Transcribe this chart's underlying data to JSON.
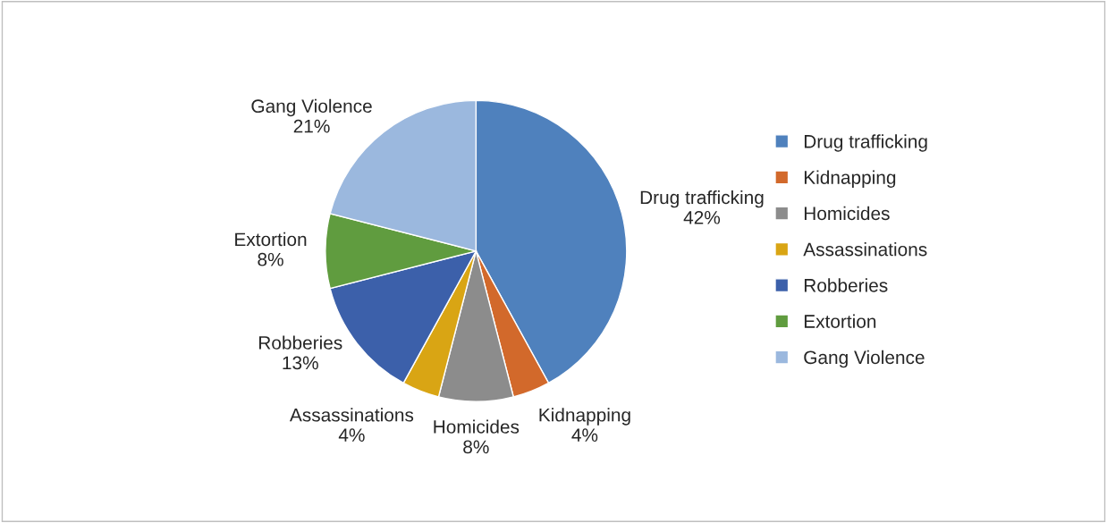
{
  "chart_data": {
    "type": "pie",
    "categories": [
      "Drug trafficking",
      "Kidnapping",
      "Homicides",
      "Assassinations",
      "Robberies",
      "Extortion",
      "Gang Violence"
    ],
    "values": [
      42,
      4,
      8,
      4,
      13,
      8,
      21
    ],
    "value_labels": [
      "42%",
      "4%",
      "8%",
      "4%",
      "13%",
      "8%",
      "21%"
    ],
    "colors": [
      "#4f81bd",
      "#d2692b",
      "#8c8c8c",
      "#d9a514",
      "#3c60aa",
      "#609c3f",
      "#9bb8de"
    ],
    "legend": "right"
  }
}
